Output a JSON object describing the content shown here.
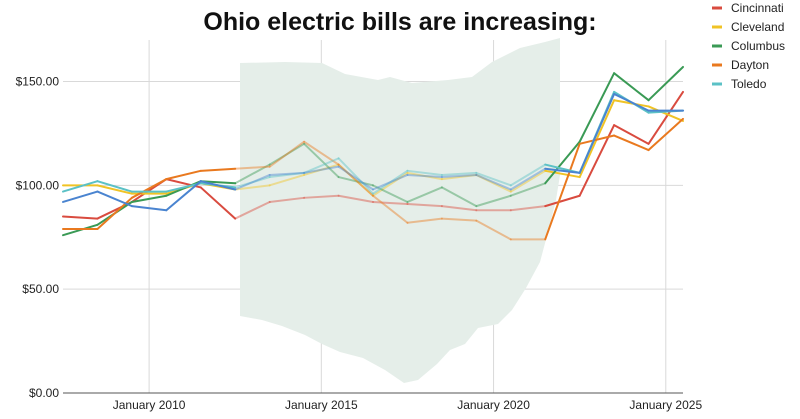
{
  "chart_data": {
    "type": "line",
    "title": "Ohio electric bills are increasing:",
    "xlabel": "",
    "ylabel": "",
    "ylim": [
      0,
      170
    ],
    "xlim": [
      2007.5,
      2025.5
    ],
    "y_ticks": [
      0,
      50,
      100,
      150
    ],
    "y_tick_labels": [
      "$0.00",
      "$50.00",
      "$100.00",
      "$150.00"
    ],
    "x_ticks": [
      2010,
      2015,
      2020,
      2025
    ],
    "x_tick_labels": [
      "January 2010",
      "January 2015",
      "January 2020",
      "January 2025"
    ],
    "grid": true,
    "legend_position": "top-right",
    "background_graphic": "Ohio state outline",
    "background_color": "#e5eee9",
    "faded_range": [
      2012.5,
      2021.5
    ],
    "x": [
      2007.5,
      2008.5,
      2009.5,
      2010.5,
      2011.5,
      2012.5,
      2013.5,
      2014.5,
      2015.5,
      2016.5,
      2017.5,
      2018.5,
      2019.5,
      2020.5,
      2021.5,
      2022.5,
      2023.5,
      2024.5,
      2025.5
    ],
    "series": [
      {
        "name": "Cincinnati",
        "color": "#d94b3f",
        "values": [
          85,
          84,
          92,
          103,
          99,
          84,
          92,
          94,
          95,
          92,
          91,
          90,
          88,
          88,
          90,
          95,
          129,
          120,
          145
        ]
      },
      {
        "name": "Cleveland",
        "color": "#f0c325",
        "values": [
          100,
          100,
          96,
          96,
          101,
          98,
          100,
          105,
          110,
          95,
          106,
          103,
          105,
          97,
          107,
          104,
          141,
          138,
          131
        ]
      },
      {
        "name": "Columbus",
        "color": "#3a9a55",
        "values": [
          76,
          81,
          92,
          95,
          102,
          101,
          110,
          120,
          104,
          100,
          92,
          99,
          90,
          95,
          101,
          121,
          154,
          141,
          157
        ]
      },
      {
        "name": "Dayton",
        "color": "#e9791f",
        "values": [
          79,
          79,
          94,
          103,
          107,
          108,
          109,
          121,
          110,
          95,
          82,
          84,
          83,
          74,
          74,
          120,
          124,
          117,
          132
        ]
      },
      {
        "name": "Toledo",
        "color": "#5bc1c6",
        "values": [
          97,
          102,
          97,
          97,
          101,
          99,
          104,
          106,
          113,
          96,
          107,
          105,
          106,
          100,
          110,
          106,
          145,
          135,
          136
        ]
      },
      {
        "name": "",
        "color": "#4a84d0",
        "values": [
          92,
          97,
          90,
          88,
          102,
          98,
          105,
          106,
          109,
          98,
          105,
          104,
          105,
          98,
          108,
          106,
          144,
          136,
          136
        ]
      }
    ]
  }
}
